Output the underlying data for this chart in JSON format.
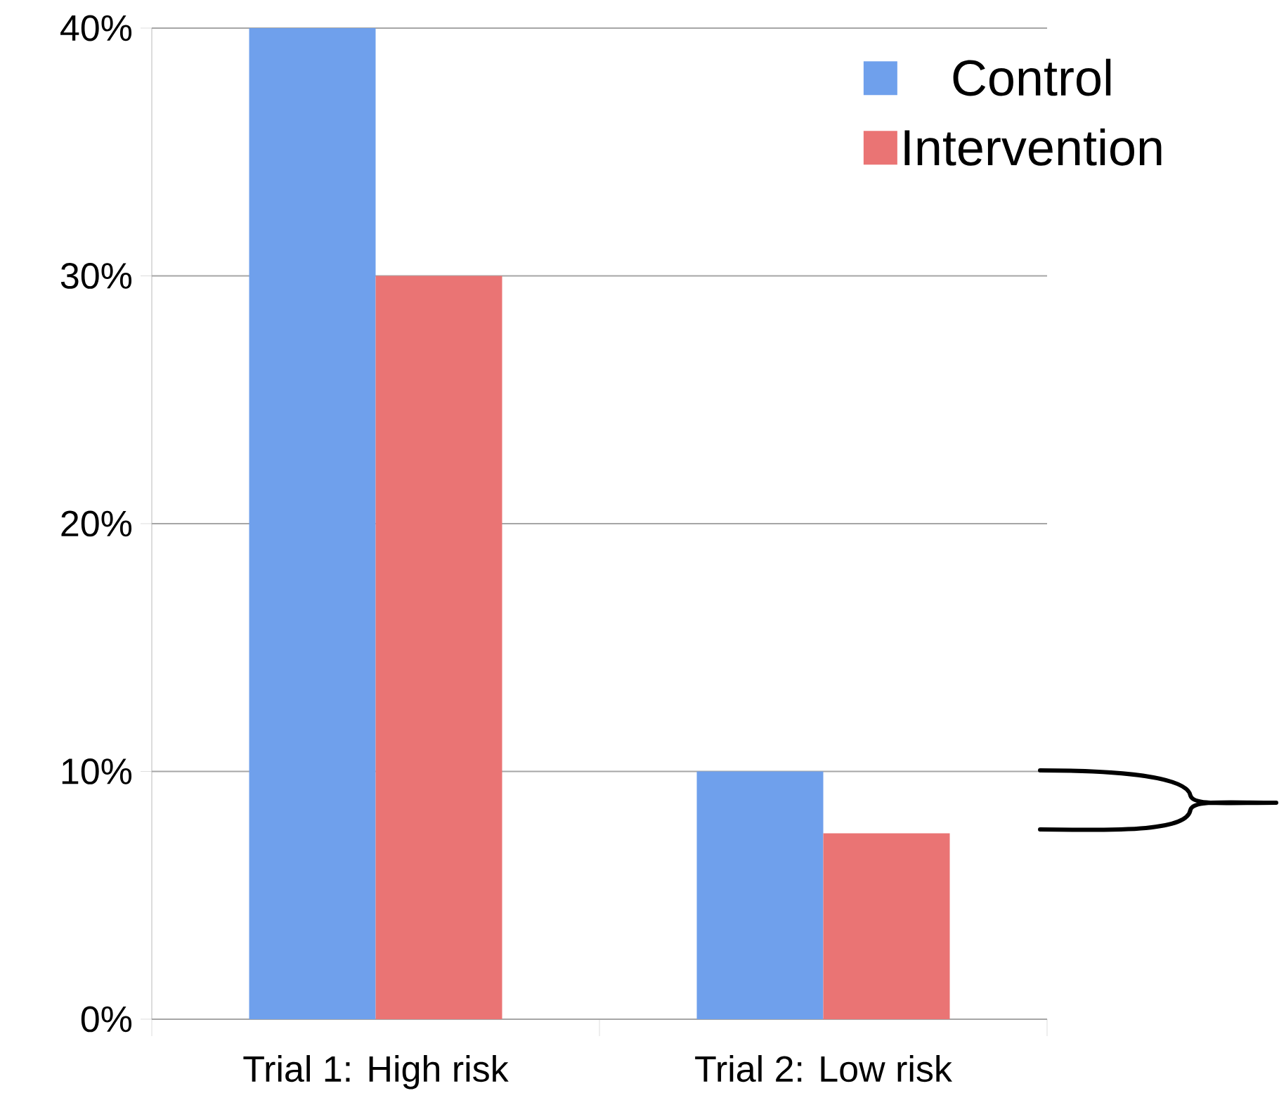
{
  "chart_data": {
    "type": "bar",
    "categories": [
      "Trial 1: High risk",
      "Trial 2: Low risk"
    ],
    "series": [
      {
        "name": "Control",
        "color": "#6fa0ec",
        "values": [
          40,
          10
        ]
      },
      {
        "name": "Intervention",
        "color": "#ea7474",
        "values": [
          30,
          7.5
        ]
      }
    ],
    "ylim": [
      0,
      40
    ],
    "yticks": [
      {
        "value": 0,
        "label": "0%"
      },
      {
        "value": 10,
        "label": "10%"
      },
      {
        "value": 20,
        "label": "20%"
      },
      {
        "value": 30,
        "label": "30%"
      },
      {
        "value": 40,
        "label": "40%"
      }
    ],
    "grid": "y",
    "legend": "top right"
  }
}
